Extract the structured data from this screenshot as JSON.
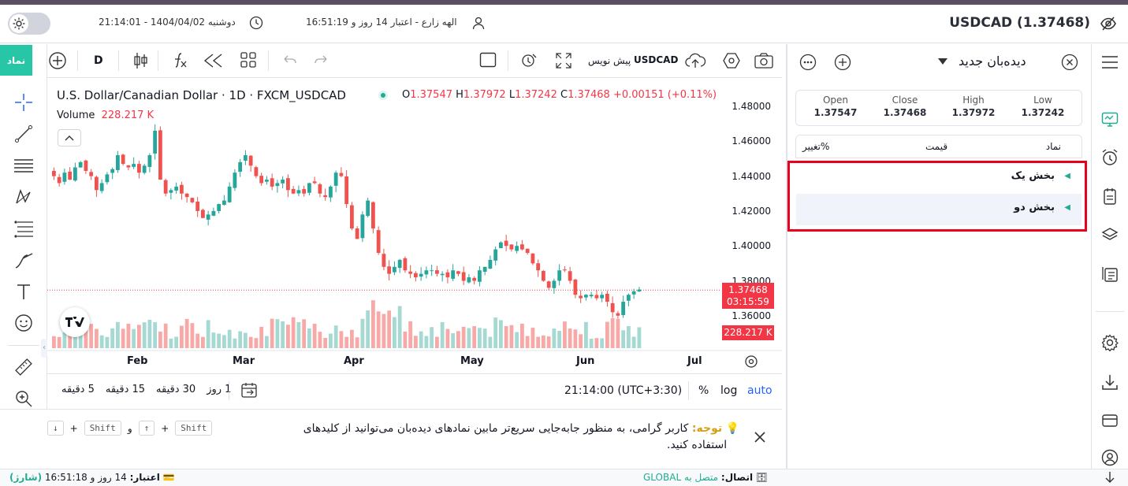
{
  "header": {
    "symbol_title": "USDCAD (1.37468)",
    "user_info": "الهه زارع - اعتبار 14 روز و 16:51:19",
    "datetime": "دوشنبه 1404/04/02 - 21:14:01"
  },
  "left_button": "نماد",
  "toolbar": {
    "interval": "D",
    "draw_label": "پیش نویس",
    "symbol": "USDCAD"
  },
  "chart": {
    "title": "U.S. Dollar/Canadian Dollar · 1D · FXCM_USDCAD",
    "ohlc": {
      "o_label": "O",
      "o": "1.37547",
      "h_label": "H",
      "h": "1.37972",
      "l_label": "L",
      "l": "1.37242",
      "c_label": "C",
      "c": "1.37468",
      "change": "+0.00151 (+0.11%)"
    },
    "volume_label": "Volume",
    "volume_value": "228.217 K",
    "price_ticks": [
      "1.48000",
      "1.46000",
      "1.44000",
      "1.42000",
      "1.40000",
      "1.38000",
      "1.36000"
    ],
    "month_ticks": [
      "Feb",
      "Mar",
      "Apr",
      "May",
      "Jun",
      "Jul"
    ],
    "last_price": "1.37468",
    "countdown": "03:15:59",
    "volume_tag": "228.217 K"
  },
  "bottom_bar": {
    "ranges": [
      "5 دقیقه",
      "15 دقیقه",
      "30 دقیقه",
      "1 روز"
    ],
    "time": "21:14:00 (UTC+3:30)",
    "percent": "%",
    "log": "log",
    "auto": "auto"
  },
  "notice": {
    "title": "توجه:",
    "text1": "کاربر گرامی، به منظور جابه‌جایی سریع‌تر مابین نمادهای دیده‌بان می‌توانید از کلیدهای",
    "text2": "استفاده کنید.",
    "shift": "Shift",
    "and": "و",
    "plus": "+",
    "up": "↑",
    "down": "↓"
  },
  "status": {
    "connection_label": "اتصال:",
    "connection_value": "متصل به GLOBAL",
    "credit_label": "اعتبار:",
    "credit_value": "14 روز و 16:51:18",
    "charge": "(شارژ)"
  },
  "watchlist": {
    "title": "دیده‌بان جدید",
    "open_label": "Open",
    "open": "1.37547",
    "close_label": "Close",
    "close": "1.37468",
    "high_label": "High",
    "high": "1.37972",
    "low_label": "Low",
    "low": "1.37242",
    "col_symbol": "نماد",
    "col_price": "قیمت",
    "col_change": "تغییر%",
    "sections": [
      "بخش یک",
      "بخش دو"
    ]
  },
  "chart_data": {
    "type": "candlestick",
    "title": "U.S. Dollar/Canadian Dollar · 1D · FXCM_USDCAD",
    "ylim": [
      1.35,
      1.49
    ],
    "x_ticks": [
      "Feb",
      "Mar",
      "Apr",
      "May",
      "Jun",
      "Jul"
    ],
    "close_series": [
      1.44,
      1.436,
      1.442,
      1.438,
      1.445,
      1.448,
      1.443,
      1.44,
      1.432,
      1.436,
      1.441,
      1.444,
      1.452,
      1.447,
      1.445,
      1.447,
      1.442,
      1.446,
      1.452,
      1.466,
      1.438,
      1.43,
      1.432,
      1.434,
      1.43,
      1.428,
      1.425,
      1.42,
      1.416,
      1.418,
      1.42,
      1.424,
      1.426,
      1.434,
      1.442,
      1.448,
      1.452,
      1.446,
      1.44,
      1.436,
      1.438,
      1.434,
      1.436,
      1.438,
      1.432,
      1.43,
      1.432,
      1.43,
      1.436,
      1.436,
      1.43,
      1.428,
      1.434,
      1.442,
      1.44,
      1.424,
      1.41,
      1.404,
      1.418,
      1.426,
      1.41,
      1.396,
      1.388,
      1.384,
      1.388,
      1.392,
      1.386,
      1.384,
      1.382,
      1.384,
      1.386,
      1.386,
      1.384,
      1.384,
      1.382,
      1.386,
      1.384,
      1.38,
      1.382,
      1.38,
      1.386,
      1.388,
      1.392,
      1.398,
      1.402,
      1.4,
      1.398,
      1.4,
      1.398,
      1.396,
      1.39,
      1.386,
      1.38,
      1.376,
      1.38,
      1.386,
      1.386,
      1.38,
      1.372,
      1.37,
      1.372,
      1.372,
      1.37,
      1.372,
      1.368,
      1.362,
      1.36,
      1.368,
      1.372,
      1.374,
      1.375
    ],
    "volume_last": 228.217,
    "last_close": 1.37468
  }
}
